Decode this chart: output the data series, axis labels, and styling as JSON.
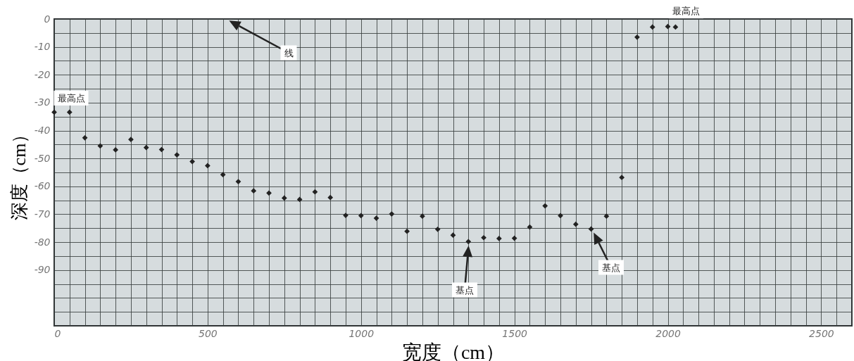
{
  "chart_data": {
    "type": "scatter",
    "xlabel": "宽度（cm）",
    "ylabel": "深度（cm）",
    "marker": "diamond",
    "grid": true,
    "x": [
      0,
      50,
      100,
      150,
      200,
      250,
      300,
      350,
      400,
      450,
      500,
      550,
      600,
      650,
      700,
      750,
      800,
      850,
      900,
      950,
      1000,
      1050,
      1100,
      1150,
      1200,
      1250,
      1300,
      1350,
      1400,
      1450,
      1500,
      1550,
      1600,
      1650,
      1700,
      1750,
      1800,
      1850,
      1900,
      1950,
      2000,
      2025
    ],
    "series": [
      {
        "color": "#222222",
        "values": [
          -33.4,
          -33.4,
          -42.6,
          -45.5,
          -46.9,
          -43.2,
          -46.1,
          -46.8,
          -48.7,
          -51.1,
          -52.6,
          -55.8,
          -58.3,
          -61.6,
          -62.4,
          -64.2,
          -64.7,
          -62,
          -64,
          -70.4,
          -70.5,
          -71.4,
          -69.9,
          -76.1,
          -70.7,
          -75.4,
          -77.5,
          -79.8,
          -78.4,
          -78.7,
          -78.6,
          -74.6,
          -67,
          -70.5,
          -73.6,
          -75.3,
          -70.7,
          -56.8,
          -6.5,
          -2.9,
          -2.7,
          -2.9
        ]
      }
    ],
    "xlim": [
      0,
      2600
    ],
    "ylim": [
      -110,
      0
    ],
    "xticks": [
      0,
      {
        "value": 50,
        "label": null
      },
      {
        "value": 100,
        "label": null
      },
      {
        "value": 150,
        "label": null
      },
      {
        "value": 200,
        "label": null
      },
      {
        "value": 250,
        "label": null
      },
      {
        "value": 300,
        "label": null
      },
      {
        "value": 350,
        "label": null
      },
      {
        "value": 400,
        "label": null
      },
      {
        "value": 450,
        "label": null
      },
      500,
      {
        "value": 550,
        "label": null
      },
      {
        "value": 600,
        "label": null
      },
      {
        "value": 650,
        "label": null
      },
      {
        "value": 700,
        "label": null
      },
      {
        "value": 750,
        "label": null
      },
      {
        "value": 800,
        "label": null
      },
      {
        "value": 850,
        "label": null
      },
      {
        "value": 900,
        "label": null
      },
      {
        "value": 950,
        "label": null
      },
      1000,
      {
        "value": 1050,
        "label": null
      },
      {
        "value": 1100,
        "label": null
      },
      {
        "value": 1150,
        "label": null
      },
      {
        "value": 1200,
        "label": null
      },
      {
        "value": 1250,
        "label": null
      },
      {
        "value": 1300,
        "label": null
      },
      {
        "value": 1350,
        "label": null
      },
      {
        "value": 1400,
        "label": null
      },
      {
        "value": 1450,
        "label": null
      },
      1500,
      {
        "value": 1550,
        "label": null
      },
      {
        "value": 1600,
        "label": null
      },
      {
        "value": 1650,
        "label": null
      },
      {
        "value": 1700,
        "label": null
      },
      {
        "value": 1750,
        "label": null
      },
      {
        "value": 1800,
        "label": null
      },
      {
        "value": 1850,
        "label": null
      },
      {
        "value": 1900,
        "label": null
      },
      {
        "value": 1950,
        "label": null
      },
      2000,
      {
        "value": 2050,
        "label": null
      },
      {
        "value": 2100,
        "label": null
      },
      {
        "value": 2150,
        "label": null
      },
      {
        "value": 2200,
        "label": null
      },
      {
        "value": 2250,
        "label": null
      },
      {
        "value": 2300,
        "label": null
      },
      {
        "value": 2350,
        "label": null
      },
      {
        "value": 2400,
        "label": null
      },
      {
        "value": 2450,
        "label": null
      },
      2500,
      {
        "value": 2550,
        "label": null
      },
      {
        "value": 2600,
        "label": null
      }
    ],
    "yticks": [
      0,
      {
        "value": -5,
        "label": null
      },
      -10,
      {
        "value": -15,
        "label": null
      },
      -20,
      {
        "value": -25,
        "label": null
      },
      -30,
      {
        "value": -35,
        "label": null
      },
      -40,
      {
        "value": -45,
        "label": null
      },
      -50,
      {
        "value": -55,
        "label": null
      },
      -60,
      {
        "value": -65,
        "label": null
      },
      -70,
      {
        "value": -75,
        "label": null
      },
      -80,
      {
        "value": -85,
        "label": null
      },
      -90,
      {
        "value": -95,
        "label": null
      },
      {
        "value": -100,
        "label": null
      },
      {
        "value": -105,
        "label": null
      },
      {
        "value": -110,
        "label": null
      }
    ],
    "annotations": [
      {
        "text": "最高点",
        "x": 0,
        "y": -33.4
      },
      {
        "text": "最高点",
        "x": 2000,
        "y": -2.7
      },
      "线",
      "基点",
      "基点"
    ]
  }
}
